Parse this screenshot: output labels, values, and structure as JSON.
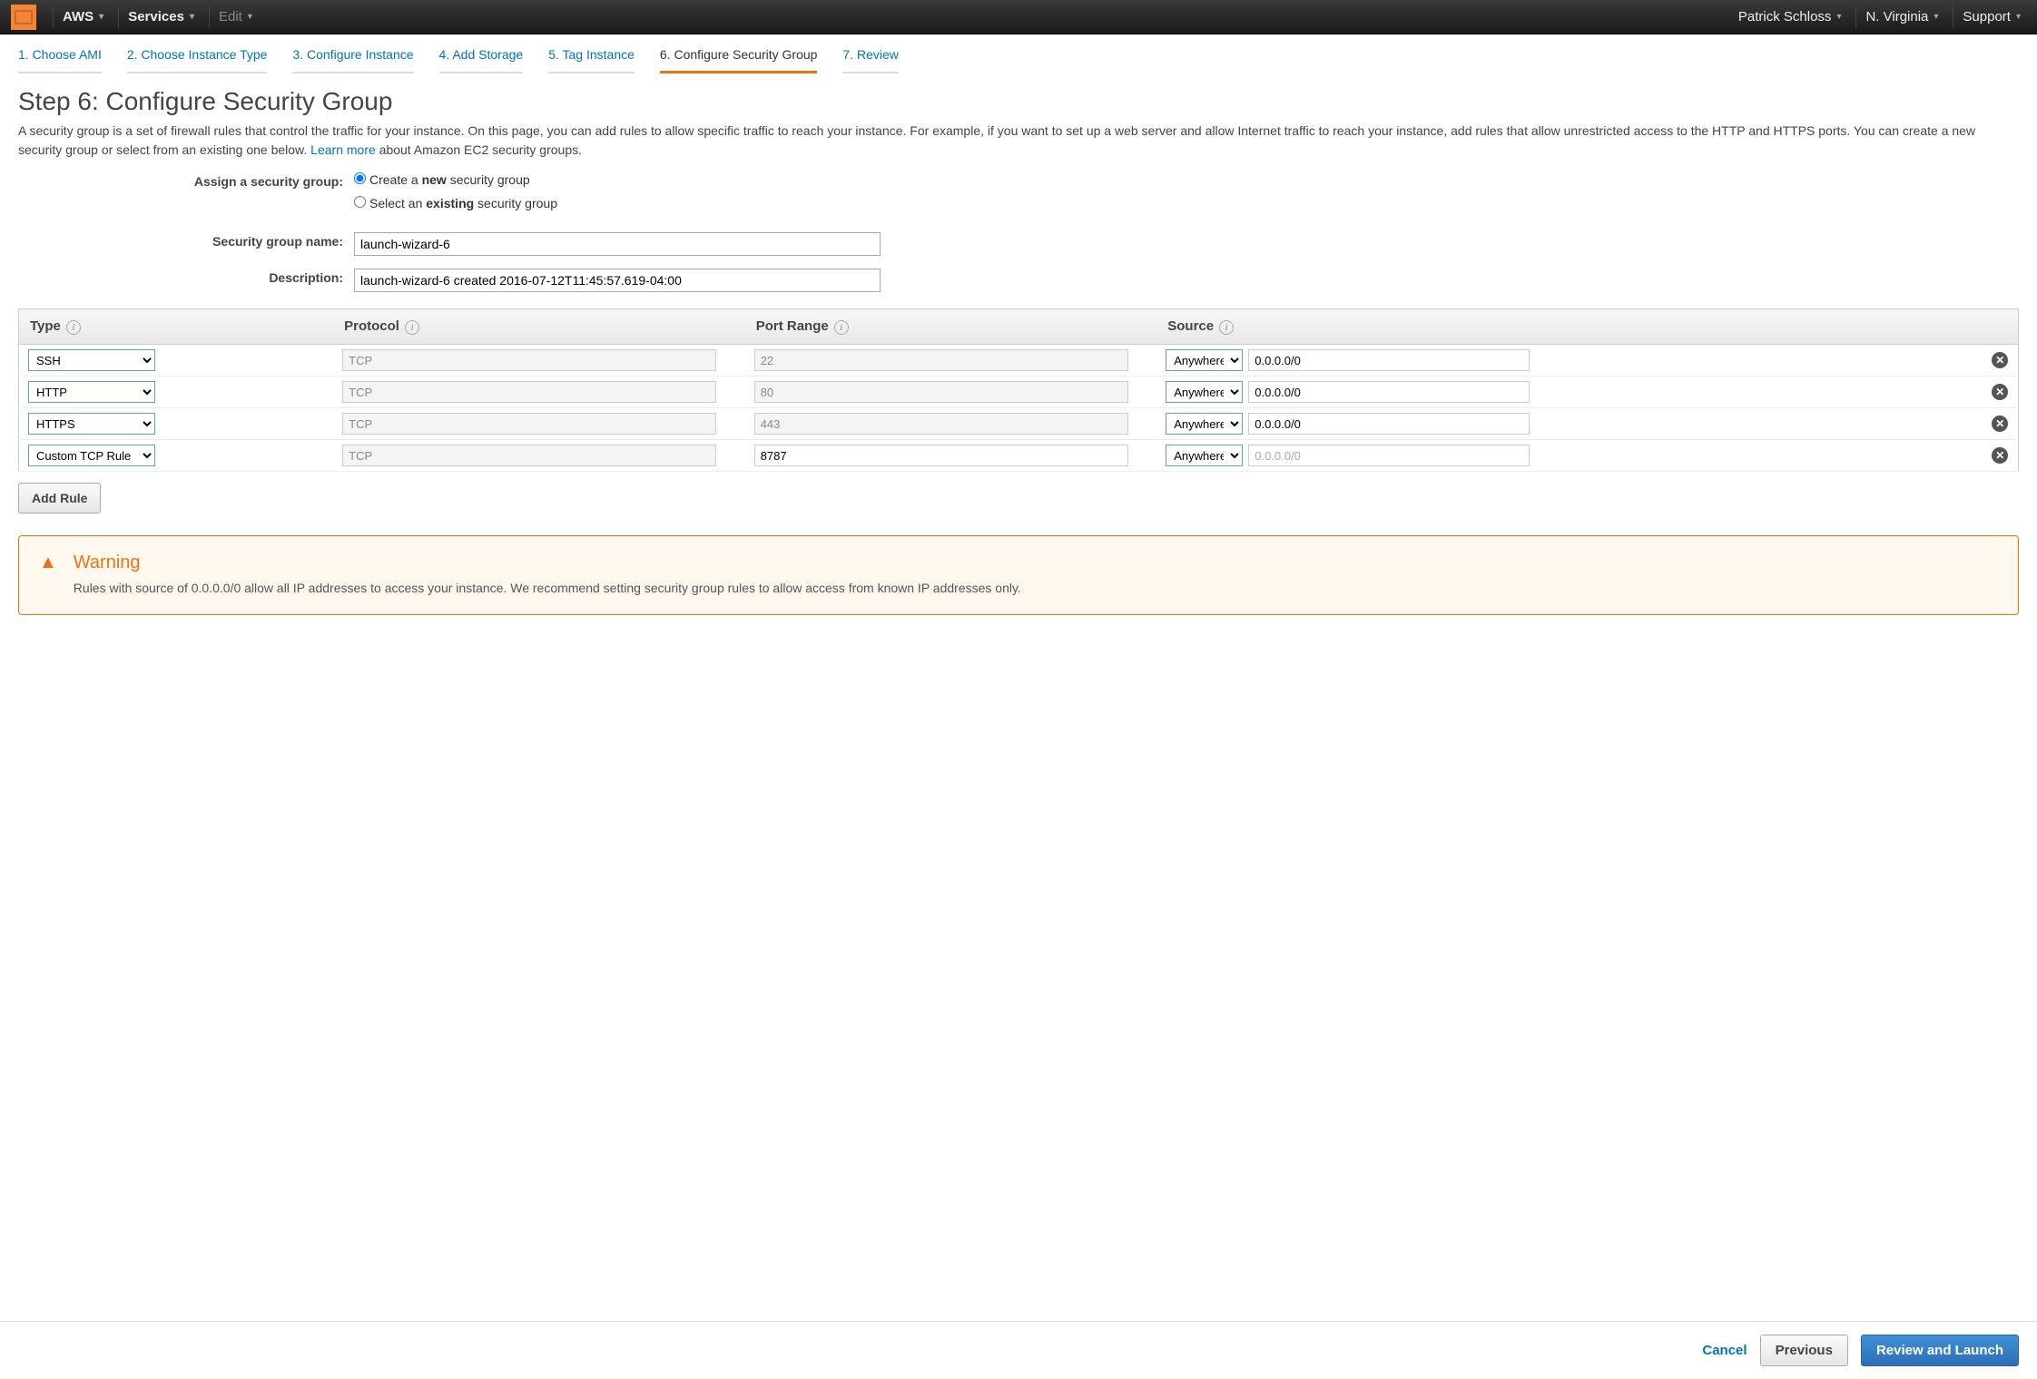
{
  "nav": {
    "aws": "AWS",
    "services": "Services",
    "edit": "Edit",
    "user": "Patrick Schloss",
    "region": "N. Virginia",
    "support": "Support"
  },
  "wizard": {
    "tabs": [
      "1. Choose AMI",
      "2. Choose Instance Type",
      "3. Configure Instance",
      "4. Add Storage",
      "5. Tag Instance",
      "6. Configure Security Group",
      "7. Review"
    ],
    "active_index": 5
  },
  "heading": "Step 6: Configure Security Group",
  "description_pre": "A security group is a set of firewall rules that control the traffic for your instance. On this page, you can add rules to allow specific traffic to reach your instance. For example, if you want to set up a web server and allow Internet traffic to reach your instance, add rules that allow unrestricted access to the HTTP and HTTPS ports. You can create a new security group or select from an existing one below. ",
  "learn_more": "Learn more",
  "description_post": " about Amazon EC2 security groups.",
  "assign": {
    "label": "Assign a security group:",
    "create_pre": "Create a ",
    "create_bold": "new",
    "create_post": " security group",
    "select_pre": "Select an ",
    "select_bold": "existing",
    "select_post": " security group"
  },
  "sg_name_label": "Security group name:",
  "sg_name_value": "launch-wizard-6",
  "sg_desc_label": "Description:",
  "sg_desc_value": "launch-wizard-6 created 2016-07-12T11:45:57.619-04:00",
  "table": {
    "headers": {
      "type": "Type",
      "protocol": "Protocol",
      "port": "Port Range",
      "source": "Source"
    },
    "rows": [
      {
        "type": "SSH",
        "protocol": "TCP",
        "port": "22",
        "port_editable": false,
        "source_sel": "Anywhere",
        "source_val": "0.0.0.0/0",
        "source_dim": false
      },
      {
        "type": "HTTP",
        "protocol": "TCP",
        "port": "80",
        "port_editable": false,
        "source_sel": "Anywhere",
        "source_val": "0.0.0.0/0",
        "source_dim": false
      },
      {
        "type": "HTTPS",
        "protocol": "TCP",
        "port": "443",
        "port_editable": false,
        "source_sel": "Anywhere",
        "source_val": "0.0.0.0/0",
        "source_dim": false
      },
      {
        "type": "Custom TCP Rule",
        "protocol": "TCP",
        "port": "8787",
        "port_editable": true,
        "source_sel": "Anywhere",
        "source_val": "0.0.0.0/0",
        "source_dim": true
      }
    ]
  },
  "add_rule": "Add Rule",
  "warning": {
    "title": "Warning",
    "text": "Rules with source of 0.0.0.0/0 allow all IP addresses to access your instance. We recommend setting security group rules to allow access from known IP addresses only."
  },
  "footer": {
    "cancel": "Cancel",
    "previous": "Previous",
    "review": "Review and Launch"
  }
}
